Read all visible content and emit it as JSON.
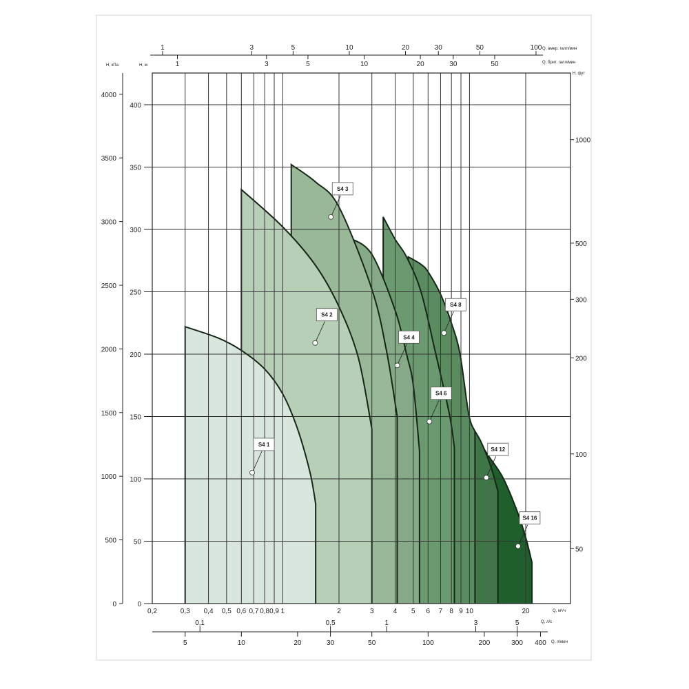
{
  "chart_data": {
    "type": "area",
    "title": "",
    "x_scale": "log",
    "xlim": [
      0.2,
      34.6
    ],
    "ylim": [
      0,
      426
    ],
    "grid": true,
    "xlabel": "Q, м³/ч",
    "ylabel": "H, м",
    "x_ticks": [
      "0,2",
      "0,3",
      "0,4",
      "0,5",
      "0,6",
      "0,7",
      "0,8",
      "0,9",
      "1",
      "2",
      "3",
      "4",
      "5",
      "6",
      "7",
      "8",
      "9",
      "10",
      "20"
    ],
    "x_tick_values": [
      0.2,
      0.3,
      0.4,
      0.5,
      0.6,
      0.7,
      0.8,
      0.9,
      1,
      2,
      3,
      4,
      5,
      6,
      7,
      8,
      9,
      10,
      20
    ],
    "y_ticks": [
      "0",
      "50",
      "100",
      "150",
      "200",
      "250",
      "300",
      "350",
      "400"
    ],
    "y_tick_values": [
      0,
      50,
      100,
      150,
      200,
      250,
      300,
      350,
      400
    ],
    "secondary_axes": {
      "kpa": {
        "label": "H, кПа",
        "ticks": [
          "0",
          "500",
          "1000",
          "1500",
          "2000",
          "2500",
          "3000",
          "3500",
          "4000"
        ],
        "values": [
          0,
          500,
          1000,
          1500,
          2000,
          2500,
          3000,
          3500,
          4000
        ]
      },
      "feet": {
        "label": "H, фут",
        "ticks": [
          "1000",
          "500",
          "300",
          "200",
          "100",
          "50"
        ],
        "at_h_m": [
          372,
          289,
          244,
          197,
          120,
          44
        ]
      },
      "us_gpm": {
        "label": "Q, амер. галл/мин",
        "ticks": [
          "1",
          "3",
          "5",
          "10",
          "20",
          "30",
          "50",
          "100"
        ],
        "values": [
          1,
          3,
          5,
          10,
          20,
          30,
          50,
          100
        ]
      },
      "imp_gpm": {
        "label": "Q, брит. галл/мин",
        "ticks": [
          "1",
          "3",
          "5",
          "10",
          "20",
          "30",
          "50"
        ],
        "values": [
          1,
          3,
          5,
          10,
          20,
          30,
          50
        ]
      },
      "lps": {
        "label": "Q, л/с",
        "ticks": [
          "0,1",
          "0,5",
          "1",
          "3",
          "5"
        ],
        "values": [
          0.1,
          0.5,
          1,
          3,
          5
        ]
      },
      "lpm": {
        "label": "Q, л/мин",
        "ticks": [
          "5",
          "10",
          "20",
          "30",
          "50",
          "100",
          "200",
          "300",
          "400"
        ],
        "values": [
          5,
          10,
          20,
          30,
          50,
          100,
          200,
          300,
          400
        ]
      }
    },
    "series": [
      {
        "name": "S4 16",
        "color": "#1e5f2c",
        "points": [
          [
            11.5,
            128
          ],
          [
            12.7,
            118
          ],
          [
            15.1,
            101
          ],
          [
            17.9,
            75
          ],
          [
            20,
            53
          ],
          [
            21.6,
            33
          ]
        ],
        "marker": [
          18.2,
          46
        ]
      },
      {
        "name": "S4 12",
        "color": "#3f7547",
        "points": [
          [
            10.2,
            143
          ],
          [
            11.5,
            130
          ],
          [
            13,
            110
          ],
          [
            14.2,
            90
          ]
        ],
        "marker": [
          12.3,
          101
        ]
      },
      {
        "name": "S4 8",
        "color": "#5a8c5f",
        "points": [
          [
            4.7,
            278
          ],
          [
            5.5,
            272
          ],
          [
            6,
            266
          ],
          [
            7,
            248
          ],
          [
            8,
            225
          ],
          [
            8.9,
            200
          ],
          [
            9.9,
            152
          ],
          [
            10.7,
            138
          ]
        ],
        "marker": [
          7.3,
          217
        ]
      },
      {
        "name": "S4 6",
        "color": "#6c9a70",
        "points": [
          [
            3.45,
            310
          ],
          [
            4,
            292
          ],
          [
            4.6,
            278
          ],
          [
            5.5,
            250
          ],
          [
            6.6,
            200
          ],
          [
            7.8,
            152
          ],
          [
            8.3,
            125
          ]
        ],
        "marker": [
          6.1,
          146
        ]
      },
      {
        "name": "S4 4",
        "color": "#86aa87",
        "points": [
          [
            2.3,
            293
          ],
          [
            3,
            280
          ],
          [
            4,
            235
          ],
          [
            4.6,
            200
          ],
          [
            5,
            175
          ],
          [
            5.4,
            122
          ]
        ],
        "marker": [
          4.1,
          191
        ]
      },
      {
        "name": "S4 3",
        "color": "#98b898",
        "points": [
          [
            1.11,
            352
          ],
          [
            1.5,
            338
          ],
          [
            2,
            318
          ],
          [
            3,
            252
          ],
          [
            3.6,
            202
          ],
          [
            4.1,
            150
          ]
        ],
        "marker": [
          1.81,
          310
        ]
      },
      {
        "name": "S4 2",
        "color": "#b7ceb7",
        "points": [
          [
            0.6,
            332
          ],
          [
            1,
            302
          ],
          [
            1.5,
            271
          ],
          [
            2,
            238
          ],
          [
            2.54,
            197
          ],
          [
            3,
            140
          ]
        ],
        "marker": [
          1.49,
          209
        ]
      },
      {
        "name": "S4 1",
        "color": "#d9e6dd",
        "points": [
          [
            0.3,
            222
          ],
          [
            0.45,
            213
          ],
          [
            0.6,
            203
          ],
          [
            0.8,
            188
          ],
          [
            1,
            168
          ],
          [
            1.2,
            140
          ],
          [
            1.4,
            105
          ],
          [
            1.5,
            80
          ]
        ],
        "marker": [
          0.686,
          105
        ]
      }
    ]
  }
}
